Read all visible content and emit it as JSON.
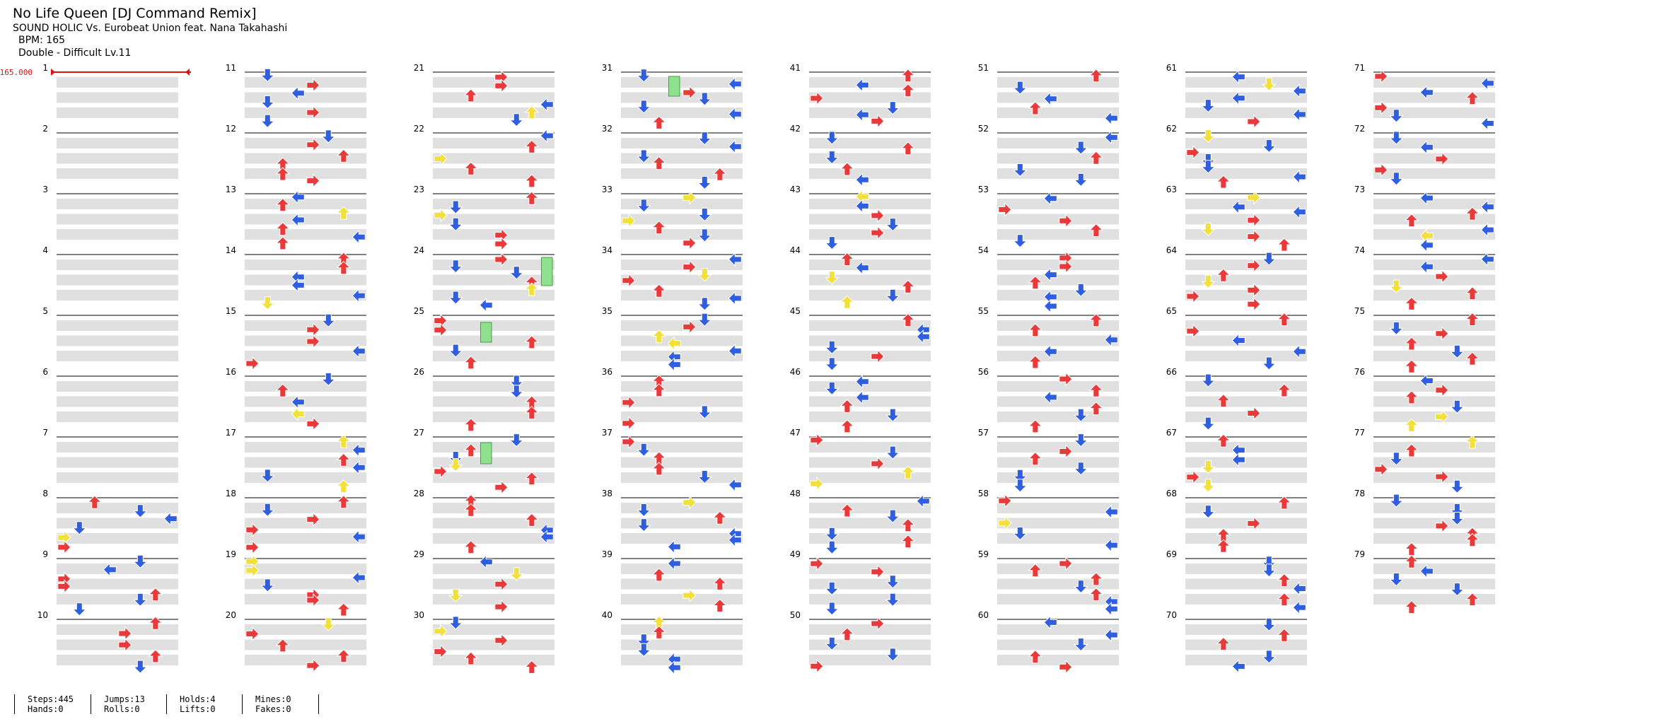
{
  "song": {
    "title": "No Life Queen [DJ Command Remix]",
    "artist": "SOUND HOLIC Vs. Eurobeat Union feat. Nana Takahashi",
    "bpm": "BPM: 165",
    "difficulty": "Double - Difficult Lv.11"
  },
  "bpm_marker": "165.000",
  "measures": [
    "1",
    "2",
    "3",
    "4",
    "5",
    "6",
    "7",
    "8",
    "9",
    "10",
    "11",
    "12",
    "13",
    "14",
    "15",
    "16",
    "17",
    "18",
    "19",
    "20",
    "21",
    "22",
    "23",
    "24",
    "25",
    "26",
    "27",
    "28",
    "29",
    "30",
    "31",
    "32",
    "33",
    "34",
    "35",
    "36",
    "37",
    "38",
    "39",
    "40",
    "41",
    "42",
    "43",
    "44",
    "45",
    "46",
    "47",
    "48",
    "49",
    "50",
    "51",
    "52",
    "53",
    "54",
    "55",
    "56",
    "57",
    "58",
    "59",
    "60",
    "61",
    "62",
    "63",
    "64",
    "65",
    "66",
    "67",
    "68",
    "69",
    "70",
    "71",
    "72",
    "73",
    "74",
    "75",
    "76",
    "77",
    "78",
    "79"
  ],
  "stats": {
    "steps": "Steps:445",
    "hands": "Hands:0",
    "jumps": "Jumps:13",
    "rolls": "Rolls:0",
    "holds": "Holds:4",
    "lifts": "Lifts:0",
    "mines": "Mines:0",
    "fakes": "Fakes:0"
  },
  "colors": {
    "red_arrow": "#e83a3a",
    "blue_arrow": "#2f5fe0",
    "yellow_arrow": "#f2e13a",
    "hold_green": "#8fe08f",
    "row_shade": "#e0e0e0",
    "bpm_red": "#dd1111"
  },
  "note_pattern": "0,4,0,2,0,1,0,3,0,5,0,6,0,2,0,7,0,4,0,1,0,3,0,5"
}
